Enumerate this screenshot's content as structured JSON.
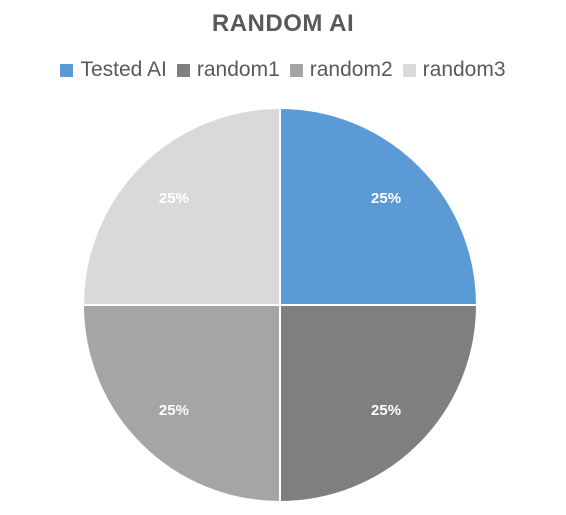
{
  "chart_data": {
    "type": "pie",
    "title": "RANDOM AI",
    "legend_position": "top",
    "slices": [
      {
        "name": "Tested AI",
        "value": 25,
        "label": "25%",
        "color": "#5b9bd5"
      },
      {
        "name": "random1",
        "value": 25,
        "label": "25%",
        "color": "#7f7f7f"
      },
      {
        "name": "random2",
        "value": 25,
        "label": "25%",
        "color": "#a5a5a5"
      },
      {
        "name": "random3",
        "value": 25,
        "label": "25%",
        "color": "#d9d9d9"
      }
    ]
  }
}
